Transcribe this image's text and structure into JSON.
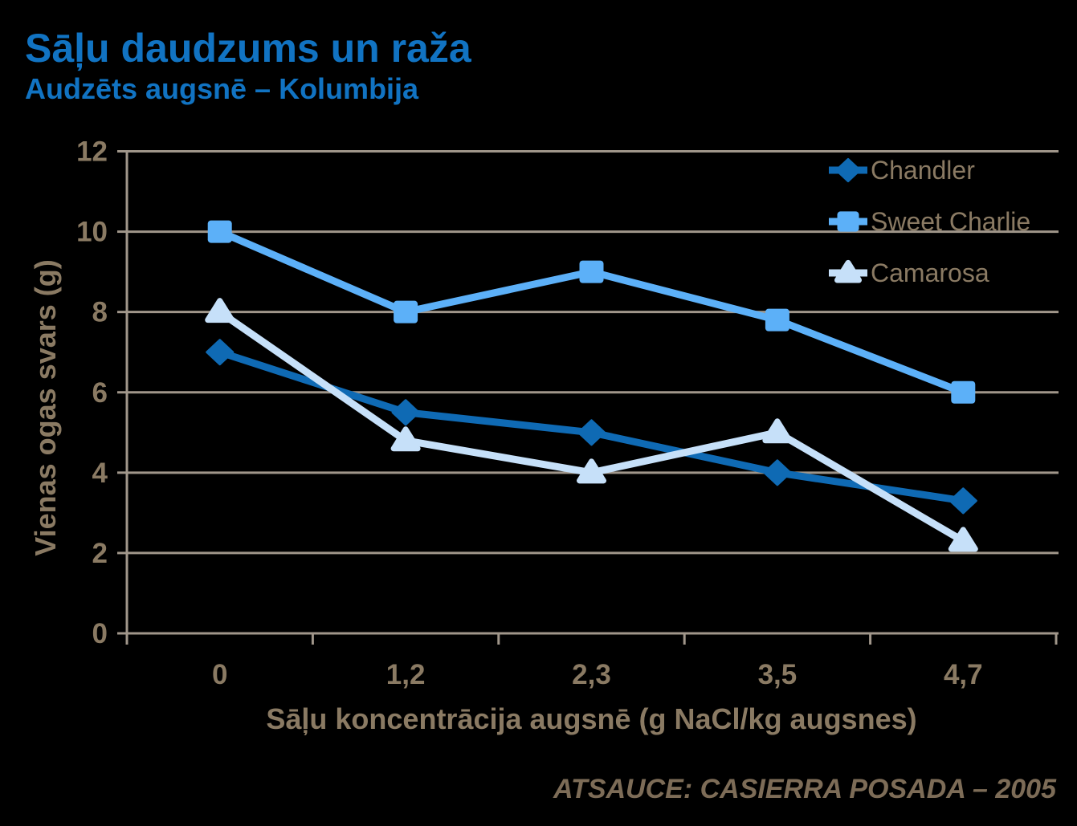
{
  "colors": {
    "background": "#000000",
    "title_text": "#1173c2",
    "axis_text": "#8a7a63",
    "grid_line": "#a0968a",
    "source_text": "#7d6c57"
  },
  "chart_data": {
    "type": "line",
    "title": "Sāļu daudzums un raža",
    "subtitle": "Audzēts augsnē – Kolumbija",
    "xlabel": "Sāļu koncentrācija augsnē (g NaCl/kg augsnes)",
    "ylabel": "Vienas ogas svars (g)",
    "categories": [
      "0",
      "1,2",
      "2,3",
      "3,5",
      "4,7"
    ],
    "ylim": [
      0,
      12
    ],
    "yticks": [
      0,
      2,
      4,
      6,
      8,
      10,
      12
    ],
    "grid": "horizontal-only",
    "legend_position": "top-right-inside",
    "series": [
      {
        "name": "Chandler",
        "marker": "diamond",
        "color": "#0f6ab4",
        "values": [
          7,
          5.5,
          5,
          4,
          3.3
        ]
      },
      {
        "name": "Sweet Charlie",
        "marker": "square",
        "color": "#5cb0f8",
        "values": [
          10,
          8,
          9,
          7.8,
          6
        ]
      },
      {
        "name": "Camarosa",
        "marker": "triangle",
        "color": "#c6e0f9",
        "values": [
          8,
          4.8,
          4,
          5,
          2.3
        ]
      }
    ],
    "source": "ATSAUCE: CASIERRA POSADA – 2005"
  }
}
